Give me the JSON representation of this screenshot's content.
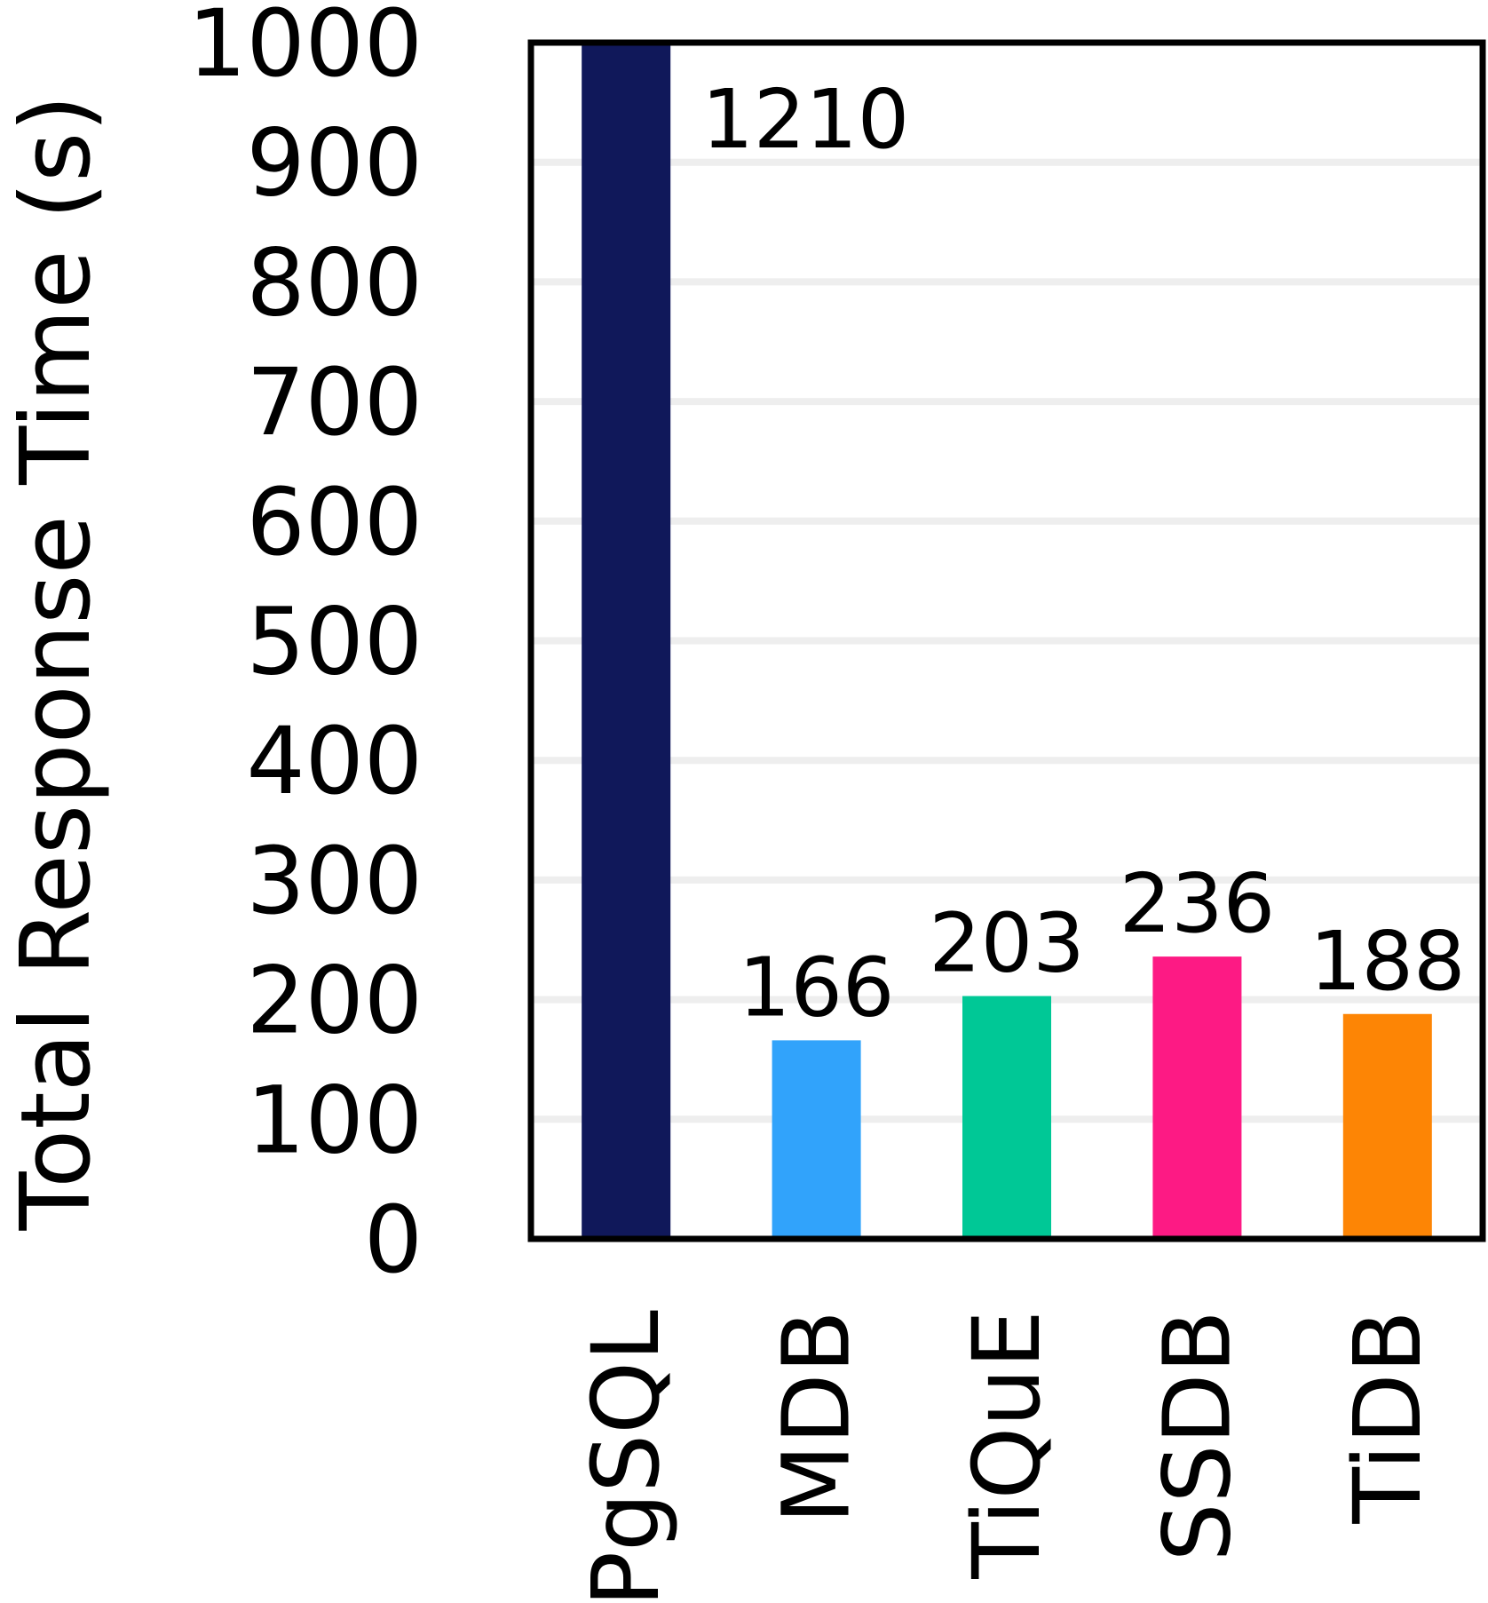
{
  "chart_data": {
    "type": "bar",
    "ylabel": "Total Response Time (s)",
    "xlabel": "",
    "title": "",
    "ylim": [
      0,
      1000
    ],
    "y_ticks": [
      0,
      100,
      200,
      300,
      400,
      500,
      600,
      700,
      800,
      900,
      1000
    ],
    "y_tick_labels": [
      "0",
      "100",
      "200",
      "300",
      "400",
      "500",
      "600",
      "700",
      "800",
      "900",
      "1000"
    ],
    "grid": true,
    "legend": "none",
    "categories": [
      "PgSQL",
      "MDB",
      "TiQuE",
      "SSDB",
      "TiDB"
    ],
    "values": [
      1210,
      166,
      203,
      236,
      188
    ],
    "data_labels": [
      "1210",
      "166",
      "203",
      "236",
      "188"
    ],
    "colors": [
      "#10185a",
      "#31a3fb",
      "#00c896",
      "#fd1a84",
      "#fd8505"
    ],
    "grid_color": "#eeeeee",
    "frame_color": "#000000"
  }
}
